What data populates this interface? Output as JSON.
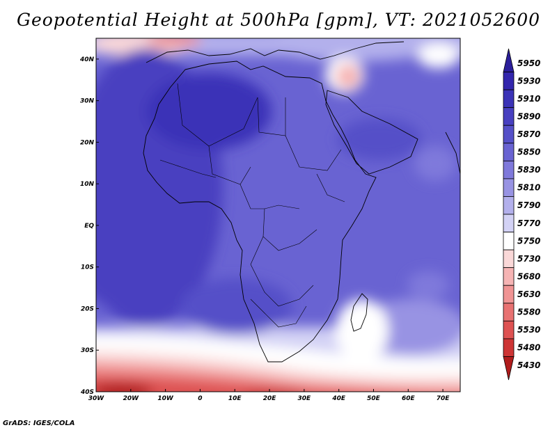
{
  "title": "Geopotential Height at 500hPa [gpm], VT: 2021052600",
  "credit": "GrADS: IGES/COLA",
  "map": {
    "lon_range": [
      -30,
      75
    ],
    "lat_range": [
      -40,
      45
    ],
    "lon_ticks": [
      "30W",
      "20W",
      "10W",
      "0",
      "10E",
      "20E",
      "30E",
      "40E",
      "50E",
      "60E",
      "70E"
    ],
    "lon_tick_values": [
      -30,
      -20,
      -10,
      0,
      10,
      20,
      30,
      40,
      50,
      60,
      70
    ],
    "lat_ticks": [
      "40N",
      "30N",
      "20N",
      "10N",
      "EQ",
      "10S",
      "20S",
      "30S",
      "40S"
    ],
    "lat_tick_values": [
      40,
      30,
      20,
      10,
      0,
      -10,
      -20,
      -30,
      -40
    ]
  },
  "colorbar": {
    "levels": [
      "5950",
      "5930",
      "5910",
      "5890",
      "5870",
      "5850",
      "5830",
      "5810",
      "5790",
      "5770",
      "5750",
      "5730",
      "5680",
      "5630",
      "5580",
      "5530",
      "5480",
      "5430"
    ],
    "colors": [
      "#2b1e9a",
      "#3326ad",
      "#3b33b7",
      "#4840c0",
      "#5550c8",
      "#6963d2",
      "#7f79db",
      "#9893e3",
      "#b3b0ec",
      "#d3d2f5",
      "#ffffff",
      "#fad8d8",
      "#f6b4b4",
      "#f09494",
      "#e87272",
      "#de5252",
      "#cd3535",
      "#b01c1c"
    ]
  }
}
